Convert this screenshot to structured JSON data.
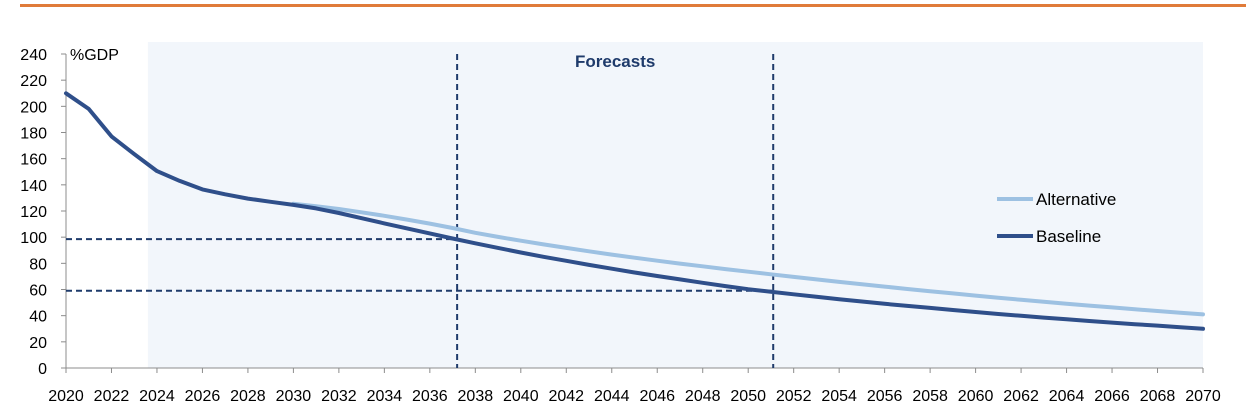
{
  "chart_data": {
    "type": "line",
    "unit_label": "%GDP",
    "xlim": [
      2020,
      2070
    ],
    "ylim": [
      0,
      240
    ],
    "x_ticks": [
      2020,
      2022,
      2024,
      2026,
      2028,
      2030,
      2032,
      2034,
      2036,
      2038,
      2040,
      2042,
      2044,
      2046,
      2048,
      2050,
      2052,
      2054,
      2056,
      2058,
      2060,
      2062,
      2064,
      2066,
      2068,
      2070
    ],
    "y_ticks": [
      0,
      20,
      40,
      60,
      80,
      100,
      120,
      140,
      160,
      180,
      200,
      220,
      240
    ],
    "forecast_region": {
      "start": 2023.6,
      "end": 2070,
      "label": "Forecasts",
      "fill_color": "#f2f6fb",
      "label_color": "#1f3b6b"
    },
    "reference_lines": [
      {
        "type": "horizontal",
        "y": 98.5,
        "x_end": 2037.2,
        "color": "#1f3b6b"
      },
      {
        "type": "horizontal",
        "y": 59,
        "x_end": 2051.1,
        "color": "#1f3b6b"
      },
      {
        "type": "vertical",
        "x": 2037.2,
        "color": "#1f3b6b"
      },
      {
        "type": "vertical",
        "x": 2051.1,
        "color": "#1f3b6b"
      }
    ],
    "legend_position": "right",
    "series": [
      {
        "name": "Alternative",
        "color": "#9dc1e2",
        "x": [
          2030,
          2031,
          2032,
          2033,
          2034,
          2035,
          2036,
          2037,
          2038,
          2039,
          2040,
          2041,
          2042,
          2043,
          2044,
          2045,
          2046,
          2047,
          2048,
          2049,
          2050,
          2051,
          2052,
          2053,
          2054,
          2055,
          2056,
          2057,
          2058,
          2059,
          2060,
          2061,
          2062,
          2063,
          2064,
          2065,
          2066,
          2067,
          2068,
          2069,
          2070
        ],
        "values": [
          125.5,
          123.7,
          121.5,
          119,
          116.3,
          113.4,
          110.4,
          107,
          103.3,
          100.2,
          97.3,
          94.5,
          91.8,
          89.2,
          86.7,
          84.3,
          82,
          79.8,
          77.7,
          75.6,
          73.6,
          71.6,
          69.6,
          67.7,
          65.8,
          64,
          62.2,
          60.4,
          58.7,
          57,
          55.3,
          53.7,
          52.1,
          50.6,
          49.1,
          47.7,
          46.3,
          44.9,
          43.6,
          42.3,
          41
        ]
      },
      {
        "name": "Baseline",
        "color": "#2f4f8a",
        "x": [
          2020,
          2021,
          2022,
          2023,
          2024,
          2025,
          2026,
          2027,
          2028,
          2029,
          2030,
          2031,
          2032,
          2033,
          2034,
          2035,
          2036,
          2037,
          2038,
          2039,
          2040,
          2041,
          2042,
          2043,
          2044,
          2045,
          2046,
          2047,
          2048,
          2049,
          2050,
          2051,
          2052,
          2053,
          2054,
          2055,
          2056,
          2057,
          2058,
          2059,
          2060,
          2061,
          2062,
          2063,
          2064,
          2065,
          2066,
          2067,
          2068,
          2069,
          2070
        ],
        "values": [
          210,
          198,
          177,
          163.5,
          150.5,
          143,
          136.5,
          132.8,
          129.5,
          127,
          124.7,
          122,
          118.5,
          114.5,
          110.5,
          106.7,
          102.9,
          99,
          95.3,
          91.8,
          88.3,
          85,
          81.9,
          78.8,
          75.9,
          73,
          70.3,
          67.7,
          65.1,
          62.6,
          60.2,
          58.3,
          56.3,
          54.4,
          52.6,
          50.8,
          49.1,
          47.5,
          45.9,
          44.3,
          42.8,
          41.3,
          39.9,
          38.5,
          37.2,
          35.9,
          34.7,
          33.5,
          32.4,
          31.2,
          30
        ]
      }
    ]
  }
}
